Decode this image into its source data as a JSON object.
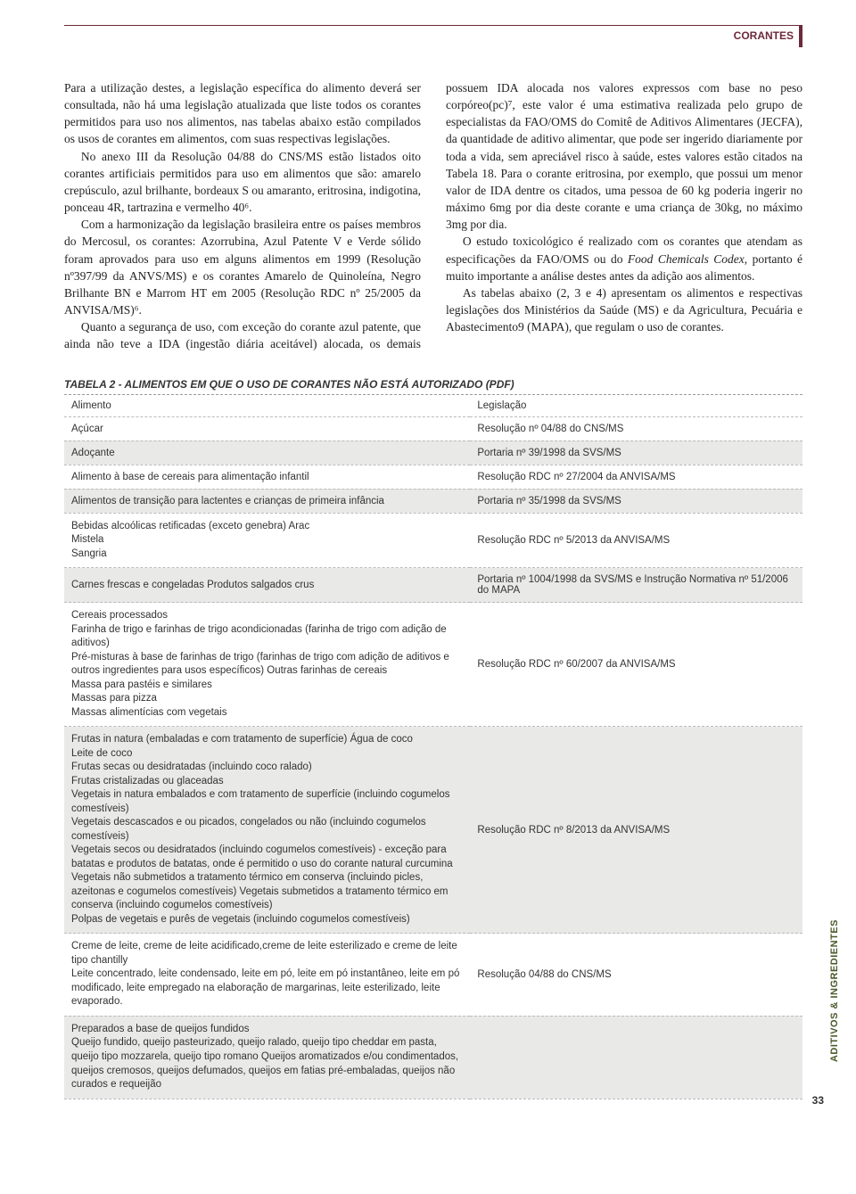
{
  "header": {
    "section": "CORANTES"
  },
  "body": {
    "p1": "Para a utilização destes, a legislação específica do alimento deverá ser consultada, não há uma legislação atualizada que liste todos os corantes permitidos para uso nos alimentos, nas tabelas abaixo estão compilados os usos de corantes em alimentos, com suas respectivas legislações.",
    "p2": "No anexo III da Resolução 04/88 do CNS/MS estão listados oito corantes artificiais permitidos para uso em alimentos que são: amarelo crepúsculo, azul brilhante, bordeaux S ou amaranto, eritrosina, indigotina, ponceau 4R, tartrazina e vermelho 40⁶.",
    "p3": "Com a harmonização da legislação brasileira entre os países membros do Mercosul, os corantes: Azorrubina, Azul Patente V e Verde sólido foram aprovados para uso em alguns alimentos em 1999 (Resolução nº397/99 da ANVS/MS) e os corantes Amarelo de Quinoleína, Negro Brilhante BN e Marrom HT em 2005 (Resolução RDC nº 25/2005 da ANVISA/MS)⁶.",
    "p4": "Quanto a segurança de uso, com exceção do corante azul patente, que ainda não teve a IDA (ingestão diária aceitável) alocada, os demais possuem IDA alocada nos valores expressos com base no peso corpóreo(pc)⁷, este valor é uma estimativa realizada pelo grupo de especialistas da FAO/OMS do Comitê de Aditivos Alimentares (JECFA), da quantidade de aditivo alimentar, que pode ser ingerido diariamente por toda a vida, sem apreciável risco à saúde, estes valores estão citados na Tabela 18. Para o corante eritrosina, por exemplo, que possui um menor valor de IDA dentre os citados, uma pessoa de 60 kg poderia ingerir no máximo 6mg por dia deste corante e uma criança de 30kg, no máximo 3mg por dia.",
    "p5_a": "O estudo toxicológico é realizado com os corantes que atendam as especificações da FAO/OMS ou do ",
    "p5_em": "Food Chemicals Codex",
    "p5_b": ", portanto é muito importante a análise destes antes da adição aos alimentos.",
    "p6": "As tabelas abaixo (2, 3 e 4) apresentam os alimentos e respectivas legislações dos Ministérios da Saúde (MS) e da Agricultura, Pecuária e Abastecimento9 (MAPA), que regulam o uso de corantes."
  },
  "table": {
    "title": "TABELA 2 - ALIMENTOS EM QUE O USO DE CORANTES NÃO ESTÁ AUTORIZADO (PDF)",
    "columns": [
      "Alimento",
      "Legislação"
    ],
    "rows": [
      {
        "c0": "Açúcar",
        "c1": "Resolução nº 04/88 do CNS/MS",
        "alt": false
      },
      {
        "c0": "Adoçante",
        "c1": "Portaria nº 39/1998 da SVS/MS",
        "alt": true
      },
      {
        "c0": "Alimento à base de cereais para alimentação infantil",
        "c1": "Resolução RDC nº 27/2004 da ANVISA/MS",
        "alt": false
      },
      {
        "c0": "Alimentos de transição para lactentes e crianças de primeira infância",
        "c1": "Portaria nº 35/1998 da SVS/MS",
        "alt": true
      },
      {
        "c0": "Bebidas alcoólicas retificadas (exceto genebra) Arac\nMistela\nSangria",
        "c1": "Resolução RDC nº 5/2013 da ANVISA/MS",
        "alt": false,
        "multi": true
      },
      {
        "c0": "Carnes frescas e congeladas Produtos salgados crus",
        "c1": "Portaria nº 1004/1998 da SVS/MS e Instrução Normativa nº 51/2006 do MAPA",
        "alt": true
      },
      {
        "c0": "Cereais processados\nFarinha de trigo e farinhas de trigo acondicionadas (farinha de trigo com adição de aditivos)\nPré-misturas à base de farinhas de trigo (farinhas de trigo com adição de aditivos e outros ingredientes para usos específicos) Outras farinhas de cereais\nMassa para pastéis e similares\nMassas para pizza\nMassas alimentícias com vegetais",
        "c1": "Resolução RDC nº 60/2007 da ANVISA/MS",
        "alt": false,
        "multi": true
      },
      {
        "c0": "Frutas in natura (embaladas e com tratamento de superfície) Água de coco\nLeite de coco\nFrutas secas ou desidratadas (incluindo coco ralado)\nFrutas cristalizadas ou glaceadas\nVegetais in natura embalados e com tratamento de superfície (incluindo cogumelos comestíveis)\nVegetais descascados e ou picados, congelados ou não (incluindo cogumelos comestíveis)\nVegetais secos ou desidratados (incluindo cogumelos comestíveis) - exceção para batatas e produtos de batatas, onde é permitido o uso do corante natural curcumina\nVegetais não submetidos a tratamento térmico em conserva (incluindo picles, azeitonas e cogumelos comestíveis) Vegetais submetidos a tratamento térmico em conserva (incluindo cogumelos comestíveis)\nPolpas de vegetais e purês de vegetais (incluindo cogumelos comestíveis)",
        "c1": "Resolução RDC nº 8/2013 da ANVISA/MS",
        "alt": true,
        "multi": true
      },
      {
        "c0": "Creme de leite, creme de leite acidificado,creme de leite esterilizado e creme de leite tipo chantilly\nLeite concentrado, leite condensado, leite em pó, leite em pó instantâneo, leite em pó modificado, leite empregado na elaboração de margarinas, leite esterilizado, leite evaporado.",
        "c1": "Resolução 04/88 do CNS/MS",
        "alt": false,
        "multi": true
      },
      {
        "c0": "Preparados a base de queijos fundidos\nQueijo fundido, queijo pasteurizado, queijo ralado, queijo tipo cheddar em pasta, queijo tipo mozzarela, queijo tipo romano Queijos aromatizados e/ou condimentados, queijos cremosos, queijos defumados, queijos em fatias pré-embaladas, queijos não curados e requeijão",
        "c1": "",
        "alt": true,
        "multi": true
      }
    ]
  },
  "side_label": "ADITIVOS & INGREDIENTES",
  "page_number": "33"
}
